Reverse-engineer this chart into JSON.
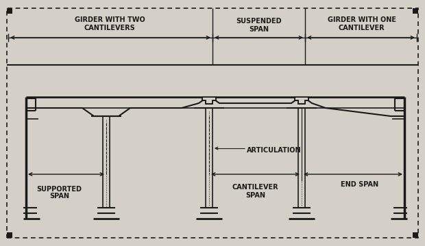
{
  "bg_color": "#d4d0c8",
  "line_color": "#1a1a1a",
  "text_color": "#1a1a1a",
  "figsize": [
    6.2,
    3.6
  ],
  "dpi": 100,
  "labels": {
    "girder_two": "GIRDER WITH TWO\nCANTILEVERS",
    "suspended": "SUSPENDED\nSPAN",
    "girder_one": "GIRDER WITH ONE\nCANTILEVER",
    "supported": "SUPPORTED\nSPAN",
    "articulation": "ARTICULATION",
    "end_span": "END SPAN",
    "cantilever": "CANTILEVER\nSPAN"
  }
}
